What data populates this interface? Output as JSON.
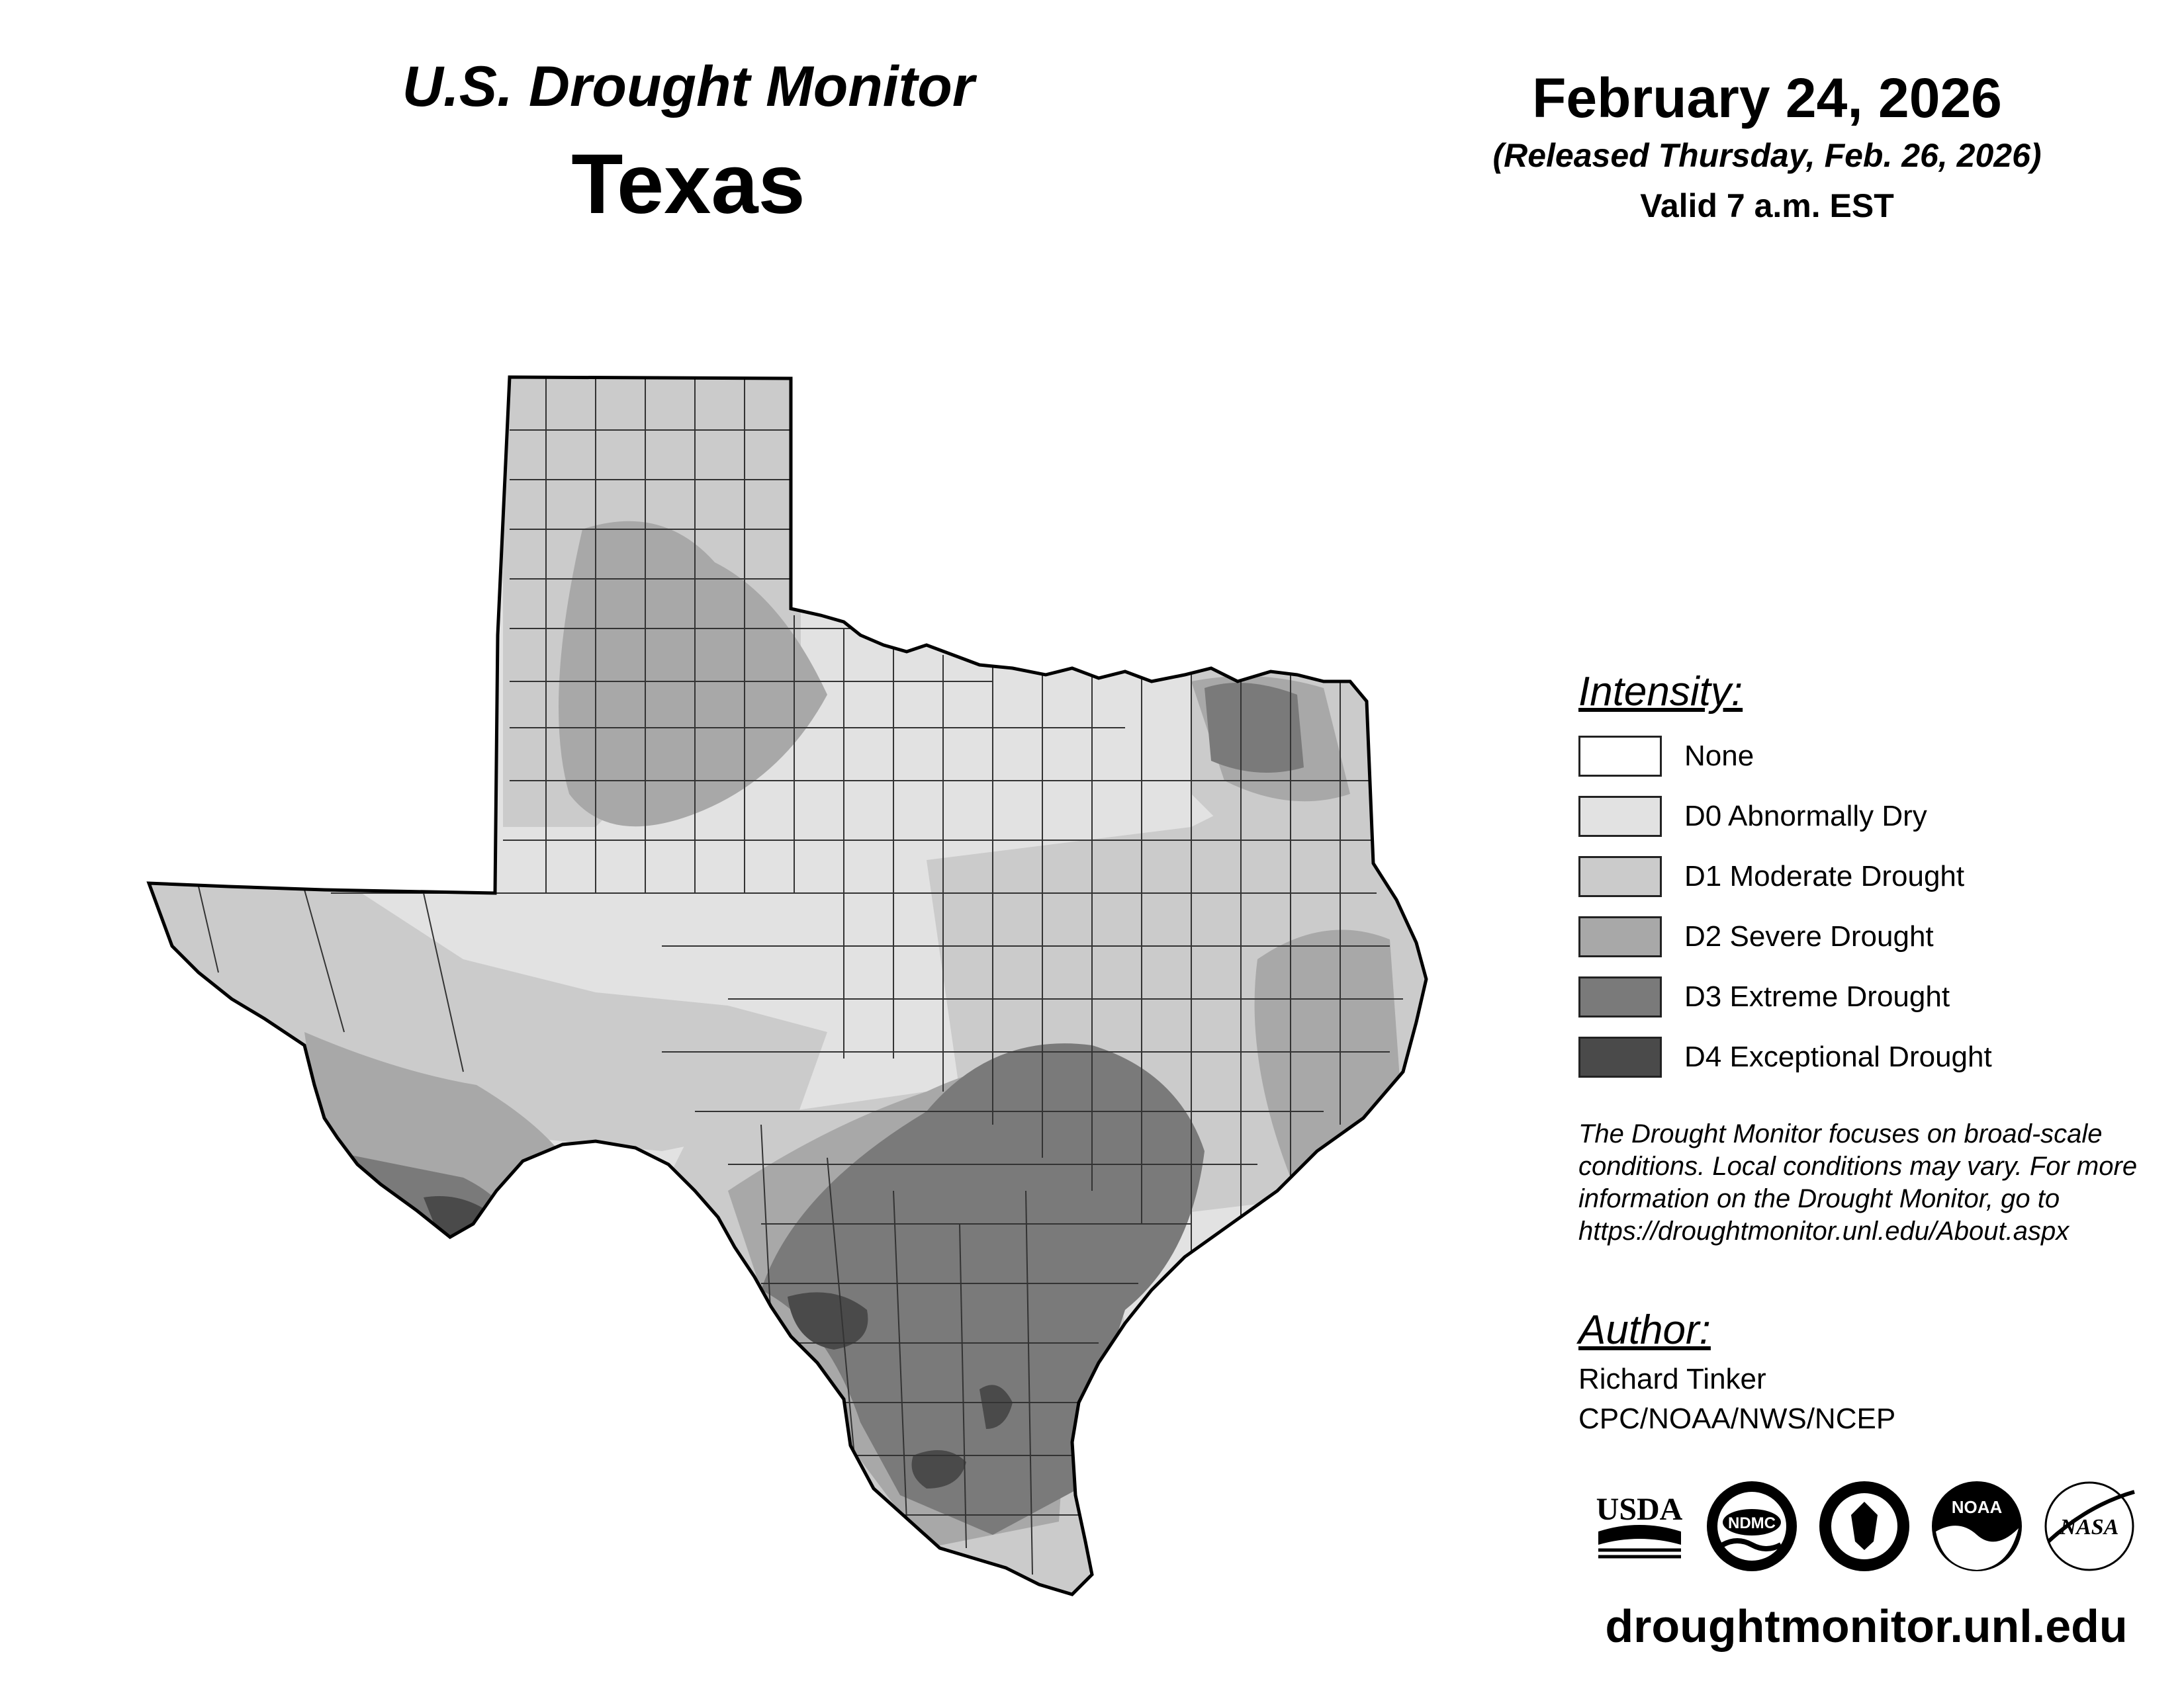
{
  "header": {
    "title": "U.S. Drought Monitor",
    "state": "Texas",
    "date": "February 24, 2026",
    "released": "(Released Thursday, Feb. 26, 2026)",
    "valid": "Valid 7 a.m. EST"
  },
  "legend": {
    "heading": "Intensity:",
    "items": [
      {
        "label": "None",
        "color": "#ffffff"
      },
      {
        "label": "D0 Abnormally Dry",
        "color": "#e2e2e2"
      },
      {
        "label": "D1 Moderate Drought",
        "color": "#cbcbcb"
      },
      {
        "label": "D2 Severe Drought",
        "color": "#a8a8a8"
      },
      {
        "label": "D3 Extreme Drought",
        "color": "#7a7a7a"
      },
      {
        "label": "D4 Exceptional Drought",
        "color": "#4a4a4a"
      }
    ]
  },
  "disclaimer": "The Drought Monitor focuses on broad-scale conditions. Local conditions may vary. For more information on the Drought Monitor, go to https://droughtmonitor.unl.edu/About.aspx",
  "author": {
    "heading": "Author:",
    "name": "Richard Tinker",
    "org": "CPC/NOAA/NWS/NCEP"
  },
  "logos": [
    {
      "name": "usda",
      "text": "USDA"
    },
    {
      "name": "ndmc",
      "text": "NDMC"
    },
    {
      "name": "department-of-commerce",
      "text": ""
    },
    {
      "name": "noaa",
      "text": "NOAA"
    },
    {
      "name": "nasa",
      "text": "NASA"
    }
  ],
  "footer": {
    "url": "droughtmonitor.unl.edu"
  }
}
